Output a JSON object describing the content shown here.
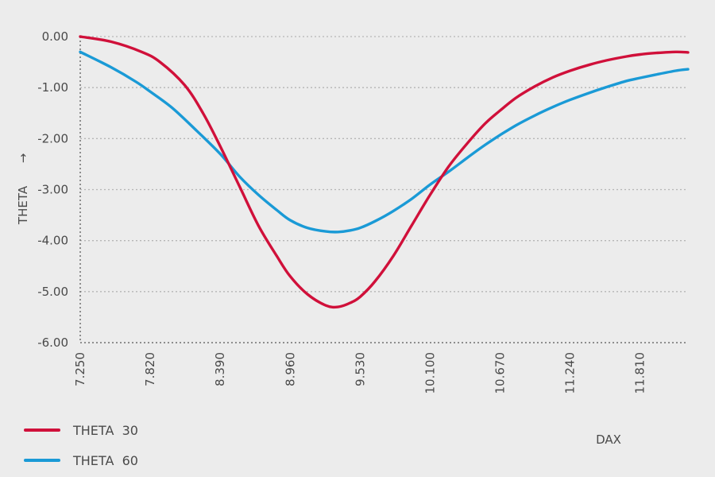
{
  "chart_data": {
    "type": "line",
    "xlabel": "DAX",
    "ylabel": "THETA",
    "ylabel_arrow": "→",
    "x_ticks": [
      "7.250",
      "7.820",
      "8.390",
      "8.960",
      "9.530",
      "10.100",
      "10.670",
      "11.240",
      "11.810"
    ],
    "y_ticks": [
      "0.00",
      "-1.00",
      "-2.00",
      "-3.00",
      "-4.00",
      "-5.00",
      "-6.00"
    ],
    "xlim": [
      7250,
      12200
    ],
    "ylim": [
      -6,
      0
    ],
    "grid": true,
    "legend_position": "bottom-left",
    "series": [
      {
        "name": "THETA  30",
        "color": "#d0103a",
        "x": [
          7250,
          7500,
          7750,
          7900,
          8100,
          8250,
          8390,
          8550,
          8700,
          8850,
          8960,
          9100,
          9250,
          9350,
          9450,
          9530,
          9650,
          9800,
          9950,
          10100,
          10250,
          10400,
          10550,
          10670,
          10800,
          10950,
          11100,
          11240,
          11400,
          11550,
          11700,
          11810,
          11950,
          12100,
          12200
        ],
        "values": [
          0.0,
          -0.1,
          -0.3,
          -0.5,
          -0.95,
          -1.5,
          -2.15,
          -2.95,
          -3.7,
          -4.3,
          -4.7,
          -5.05,
          -5.27,
          -5.3,
          -5.22,
          -5.1,
          -4.8,
          -4.3,
          -3.7,
          -3.1,
          -2.55,
          -2.1,
          -1.7,
          -1.45,
          -1.2,
          -0.98,
          -0.8,
          -0.67,
          -0.55,
          -0.46,
          -0.39,
          -0.35,
          -0.32,
          -0.3,
          -0.31
        ]
      },
      {
        "name": "THETA  60",
        "color": "#1a9ad6",
        "x": [
          7250,
          7500,
          7700,
          7820,
          8000,
          8200,
          8390,
          8550,
          8700,
          8850,
          8960,
          9100,
          9250,
          9350,
          9450,
          9530,
          9650,
          9800,
          9950,
          10100,
          10250,
          10400,
          10550,
          10670,
          10800,
          10950,
          11100,
          11240,
          11400,
          11550,
          11700,
          11810,
          11950,
          12100,
          12200
        ],
        "values": [
          -0.3,
          -0.6,
          -0.88,
          -1.08,
          -1.4,
          -1.85,
          -2.3,
          -2.75,
          -3.1,
          -3.4,
          -3.6,
          -3.75,
          -3.82,
          -3.83,
          -3.8,
          -3.75,
          -3.62,
          -3.42,
          -3.18,
          -2.9,
          -2.65,
          -2.38,
          -2.12,
          -1.93,
          -1.74,
          -1.55,
          -1.38,
          -1.24,
          -1.1,
          -0.98,
          -0.87,
          -0.81,
          -0.74,
          -0.67,
          -0.64
        ]
      }
    ]
  }
}
